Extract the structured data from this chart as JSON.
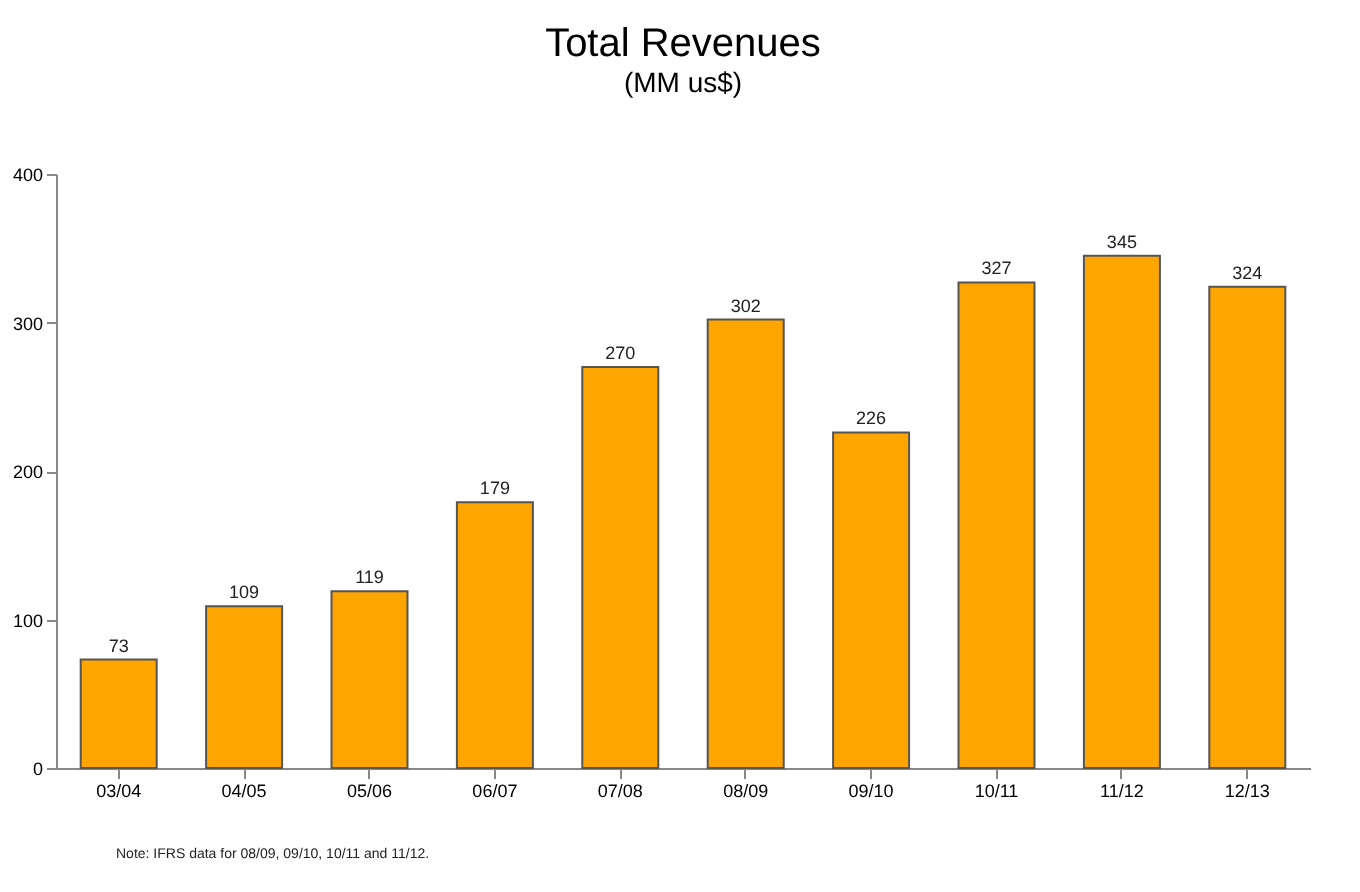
{
  "chart_data": {
    "type": "bar",
    "title": "Total Revenues",
    "subtitle": "(MM us$)",
    "categories": [
      "03/04",
      "04/05",
      "05/06",
      "06/07",
      "07/08",
      "08/09",
      "09/10",
      "10/11",
      "11/12",
      "12/13"
    ],
    "values": [
      73,
      109,
      119,
      179,
      270,
      302,
      226,
      327,
      345,
      324
    ],
    "color": "#ffa500",
    "ylim": [
      0,
      400
    ],
    "yticks": [
      0,
      100,
      200,
      300,
      400
    ],
    "grid": false,
    "data_labels": true,
    "annotations": [
      "Note: IFRS data for 08/09, 09/10, 10/11 and 11/12."
    ]
  }
}
